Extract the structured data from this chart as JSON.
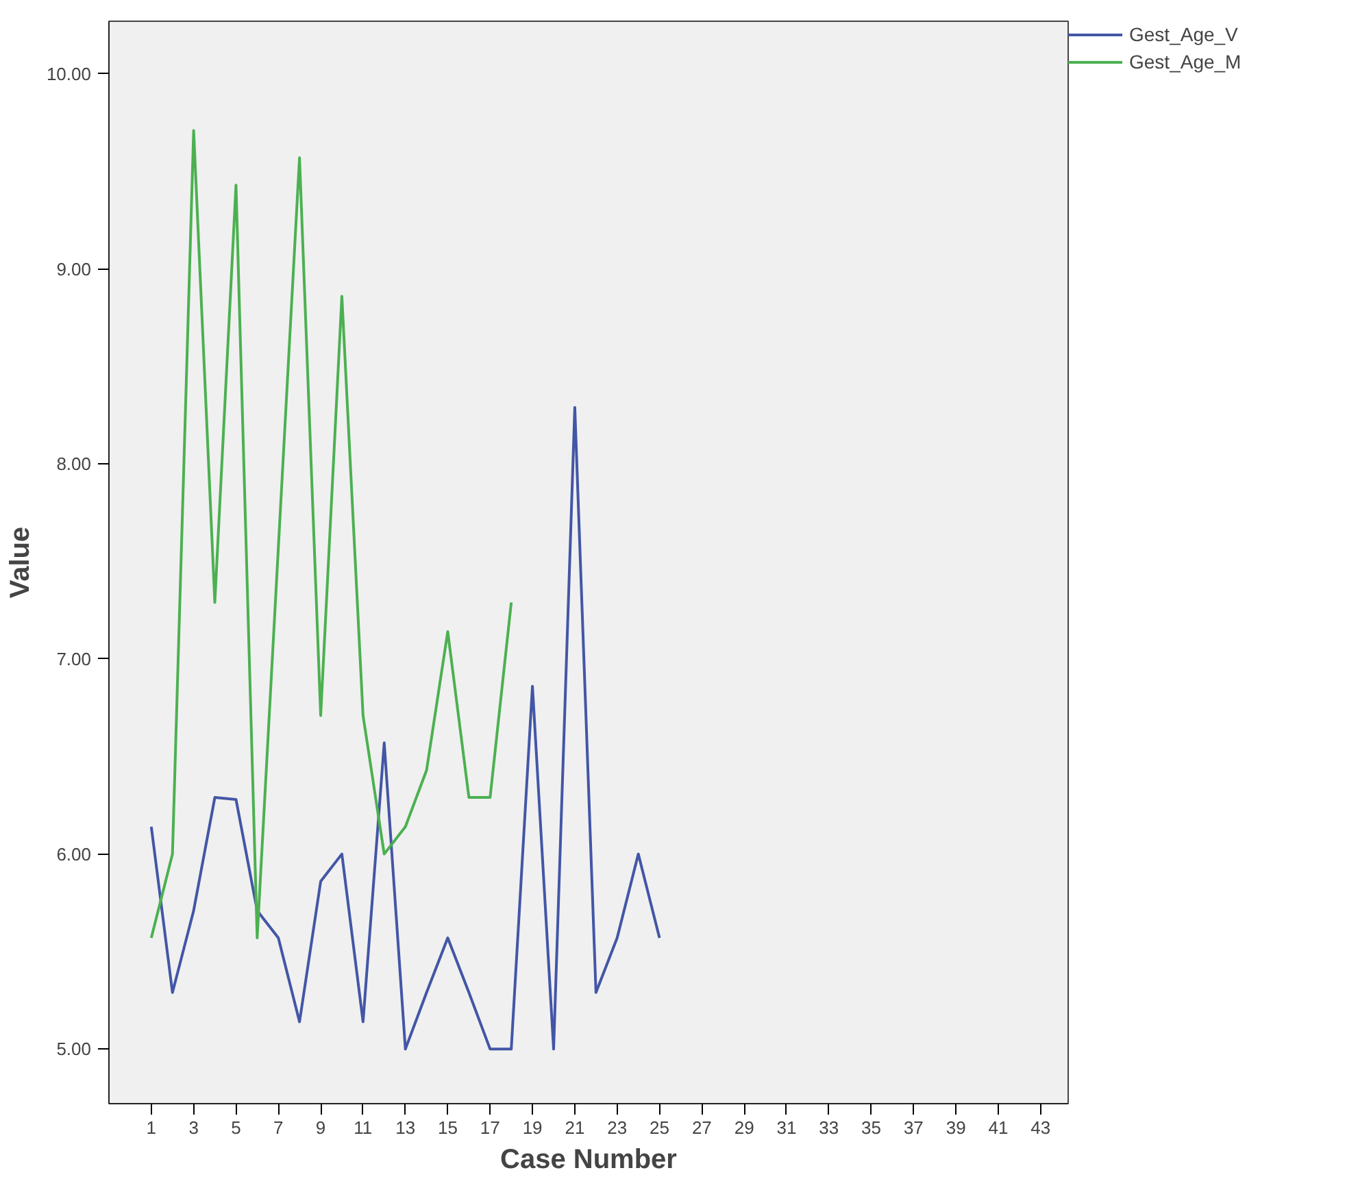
{
  "chart_data": {
    "type": "line",
    "xlabel": "Case Number",
    "ylabel": "Value",
    "x": [
      1,
      2,
      3,
      4,
      5,
      6,
      7,
      8,
      9,
      10,
      11,
      12,
      13,
      14,
      15,
      16,
      17,
      18,
      19,
      20,
      21,
      22,
      23,
      24,
      25
    ],
    "series": [
      {
        "name": "Gest_Age_V",
        "color": "#4356a6",
        "values": [
          6.14,
          5.29,
          5.71,
          6.29,
          6.28,
          5.71,
          5.57,
          5.14,
          5.86,
          6.0,
          5.14,
          6.57,
          5.0,
          5.29,
          5.57,
          5.29,
          5.0,
          5.0,
          6.86,
          5.0,
          8.29,
          5.29,
          5.57,
          6.0,
          5.57
        ]
      },
      {
        "name": "Gest_Age_M",
        "color": "#4cb051",
        "values": [
          5.57,
          6.0,
          9.71,
          7.29,
          9.43,
          5.57,
          7.57,
          9.57,
          6.71,
          8.86,
          6.71,
          6.0,
          6.14,
          6.43,
          7.14,
          6.29,
          6.29,
          7.29,
          null,
          null,
          null,
          null,
          null,
          null,
          null
        ]
      }
    ],
    "xlim": [
      -1,
      44.3
    ],
    "xticks": [
      1,
      3,
      5,
      7,
      9,
      11,
      13,
      15,
      17,
      19,
      21,
      23,
      25,
      27,
      29,
      31,
      33,
      35,
      37,
      39,
      41,
      43
    ],
    "ylim": [
      4.72,
      10.27
    ],
    "yticks": [
      {
        "value": 5,
        "label": "5.00"
      },
      {
        "value": 6,
        "label": "6.00"
      },
      {
        "value": 7,
        "label": "7.00"
      },
      {
        "value": 8,
        "label": "8.00"
      },
      {
        "value": 9,
        "label": "9.00"
      },
      {
        "value": 10,
        "label": "10.00"
      }
    ],
    "grid": false,
    "legend": "top right",
    "line_style": "solid",
    "marker": "none"
  }
}
